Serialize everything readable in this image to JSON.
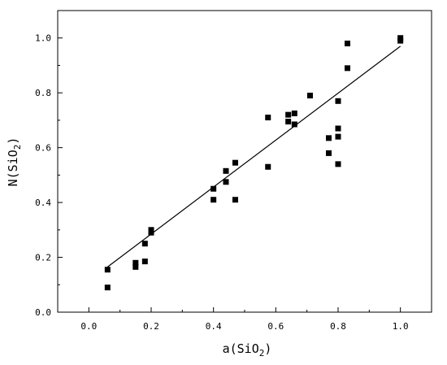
{
  "chart_data": {
    "type": "scatter",
    "title": "",
    "xlabel": "a(SiO2)",
    "ylabel": "N(SiO2)",
    "xlabel_parts": {
      "prefix": "a(SiO",
      "subscript": "2",
      "suffix": ")"
    },
    "ylabel_parts": {
      "prefix": "N(SiO",
      "subscript": "2",
      "suffix": ")"
    },
    "xlim": [
      -0.1,
      1.1
    ],
    "ylim": [
      0.0,
      1.1
    ],
    "x_ticks": [
      "0.0",
      "0.2",
      "0.4",
      "0.6",
      "0.8",
      "1.0"
    ],
    "y_ticks": [
      "0.0",
      "0.2",
      "0.4",
      "0.6",
      "0.8",
      "1.0"
    ],
    "grid": false,
    "legend": "none",
    "marker": "square",
    "points": [
      {
        "x": 0.06,
        "y": 0.09
      },
      {
        "x": 0.06,
        "y": 0.155
      },
      {
        "x": 0.15,
        "y": 0.165
      },
      {
        "x": 0.15,
        "y": 0.18
      },
      {
        "x": 0.18,
        "y": 0.185
      },
      {
        "x": 0.18,
        "y": 0.25
      },
      {
        "x": 0.2,
        "y": 0.29
      },
      {
        "x": 0.2,
        "y": 0.3
      },
      {
        "x": 0.4,
        "y": 0.41
      },
      {
        "x": 0.4,
        "y": 0.45
      },
      {
        "x": 0.44,
        "y": 0.475
      },
      {
        "x": 0.44,
        "y": 0.515
      },
      {
        "x": 0.47,
        "y": 0.41
      },
      {
        "x": 0.47,
        "y": 0.545
      },
      {
        "x": 0.575,
        "y": 0.53
      },
      {
        "x": 0.575,
        "y": 0.71
      },
      {
        "x": 0.64,
        "y": 0.695
      },
      {
        "x": 0.64,
        "y": 0.72
      },
      {
        "x": 0.66,
        "y": 0.685
      },
      {
        "x": 0.66,
        "y": 0.725
      },
      {
        "x": 0.71,
        "y": 0.79
      },
      {
        "x": 0.77,
        "y": 0.58
      },
      {
        "x": 0.77,
        "y": 0.635
      },
      {
        "x": 0.8,
        "y": 0.54
      },
      {
        "x": 0.8,
        "y": 0.64
      },
      {
        "x": 0.8,
        "y": 0.67
      },
      {
        "x": 0.8,
        "y": 0.77
      },
      {
        "x": 0.83,
        "y": 0.89
      },
      {
        "x": 0.83,
        "y": 0.98
      },
      {
        "x": 1.0,
        "y": 0.99
      },
      {
        "x": 1.0,
        "y": 1.0
      }
    ],
    "fit_line": {
      "x": [
        0.06,
        1.0
      ],
      "y": [
        0.165,
        0.97
      ]
    }
  }
}
